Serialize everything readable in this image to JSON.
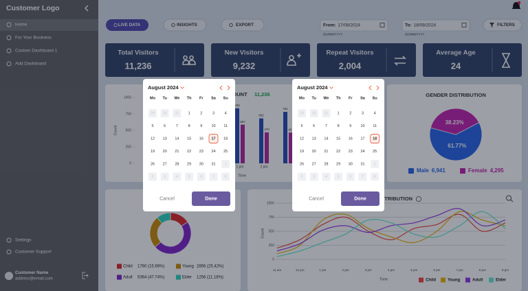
{
  "sidebar": {
    "logo": "Customer Logo",
    "nav": [
      "Home",
      "For Your Business",
      "Custom Dashboard 1",
      "Add Dashboard"
    ],
    "footer_nav": [
      "Settings",
      "Customer Support"
    ],
    "user": {
      "name": "Customer Name",
      "email": "address@email.com"
    }
  },
  "toolbar": {
    "buttons": [
      "LIVE DATA",
      "INSIGHTS",
      "EXPORT"
    ],
    "from": {
      "label": "From:",
      "value": "17/08/2024",
      "hint": "DD/MM/YYYY"
    },
    "to": {
      "label": "To:",
      "value": "18/08/2024",
      "hint": "DD/MM/YYYY"
    },
    "filters": "FILTERS"
  },
  "kpis": [
    {
      "title": "Total Visitors",
      "value": "11,236"
    },
    {
      "title": "New Visitors",
      "value": "9,232"
    },
    {
      "title": "Repeat Visitors",
      "value": "2,004"
    },
    {
      "title": "Average Age",
      "value": "24"
    }
  ],
  "date_pickers": [
    {
      "month": "August 2024",
      "weekdays": [
        "Mo",
        "Tu",
        "We",
        "Th",
        "Fr",
        "Sa",
        "Su"
      ],
      "weeks": [
        [
          29,
          30,
          31,
          1,
          2,
          3,
          4
        ],
        [
          5,
          6,
          7,
          8,
          9,
          10,
          11
        ],
        [
          12,
          13,
          14,
          15,
          16,
          17,
          18
        ],
        [
          19,
          20,
          21,
          22,
          23,
          24,
          25
        ],
        [
          26,
          27,
          28,
          29,
          30,
          31,
          1
        ],
        [
          2,
          3,
          4,
          5,
          6,
          7,
          8
        ]
      ],
      "selected": 17,
      "cancel": "Cancel",
      "done": "Done"
    },
    {
      "month": "August 2024",
      "weekdays": [
        "Mo",
        "Tu",
        "We",
        "Th",
        "Fr",
        "Sa",
        "Su"
      ],
      "weeks": [
        [
          29,
          30,
          31,
          1,
          2,
          3,
          4
        ],
        [
          5,
          6,
          7,
          8,
          9,
          10,
          11
        ],
        [
          12,
          13,
          14,
          15,
          16,
          17,
          18
        ],
        [
          19,
          20,
          21,
          22,
          23,
          24,
          25
        ],
        [
          26,
          27,
          28,
          29,
          30,
          31,
          1
        ],
        [
          2,
          3,
          4,
          5,
          6,
          7,
          8
        ]
      ],
      "selected": 18,
      "cancel": "Cancel",
      "done": "Done"
    }
  ],
  "chart_data": [
    {
      "type": "bar",
      "title": "COUNT",
      "subtitle": "11,236",
      "xlabel": "Time",
      "ylabel": "Count",
      "categories": [
        "1 pm",
        "2 pm",
        null
      ],
      "series": [
        {
          "color": "#2449b8",
          "values": [
            836,
            682,
            781
          ]
        },
        {
          "color": "#b0249f",
          "values": [
            587,
            470,
            467
          ]
        }
      ],
      "ylim": [
        0,
        1000
      ],
      "yticks": [
        0,
        250,
        500,
        750,
        1000
      ]
    },
    {
      "type": "pie",
      "title": "GENDER DISTRIBUTION",
      "categories": [
        "Male",
        "Female"
      ],
      "values": [
        61.77,
        38.23
      ],
      "value_labels": [
        "61.77%",
        "38.23%"
      ],
      "colors": [
        "#2563eb",
        "#c21fb0"
      ],
      "counts": [
        {
          "value": 6941,
          "label": "6,941"
        },
        {
          "value": 4295,
          "label": "4,295"
        }
      ]
    },
    {
      "type": "donut",
      "categories": [
        "Child",
        "Young",
        "Adult",
        "Elder"
      ],
      "values": [
        1760,
        2856,
        5364,
        1256
      ],
      "value_labels": [
        "1760 (15.66%)",
        "2856 (25.42%)",
        "5364 (47.74%)",
        "1256 (11.18%)"
      ],
      "colors": [
        "#dc2626",
        "#ca8a04",
        "#7e22ce",
        "#2dd4bf"
      ]
    },
    {
      "type": "line",
      "title": "DISTRIBUTION",
      "xlabel": "Time",
      "ylabel": "Count",
      "categories": [
        "11 am",
        "12 pm",
        "1 pm",
        "2 pm",
        "3 pm",
        "4 pm",
        "5 pm",
        "6 pm",
        "7 pm",
        "8 pm",
        "9 pm"
      ],
      "series": [
        {
          "name": "Child",
          "color": "#ef4444",
          "values": [
            200,
            350,
            620,
            750,
            500,
            350,
            550,
            620,
            800,
            500,
            650
          ]
        },
        {
          "name": "Young",
          "color": "#eab308",
          "values": [
            100,
            250,
            700,
            800,
            550,
            400,
            300,
            500,
            850,
            700,
            600
          ]
        },
        {
          "name": "Adult",
          "color": "#9333ea",
          "values": [
            150,
            280,
            520,
            600,
            480,
            600,
            650,
            780,
            900,
            600,
            700
          ]
        },
        {
          "name": "Elder",
          "color": "#5eead4",
          "values": [
            50,
            150,
            300,
            450,
            700,
            650,
            450,
            400,
            600,
            850,
            550
          ]
        }
      ],
      "ylim": [
        0,
        1000
      ],
      "yticks": [
        0,
        250,
        500,
        750,
        1000
      ]
    }
  ]
}
